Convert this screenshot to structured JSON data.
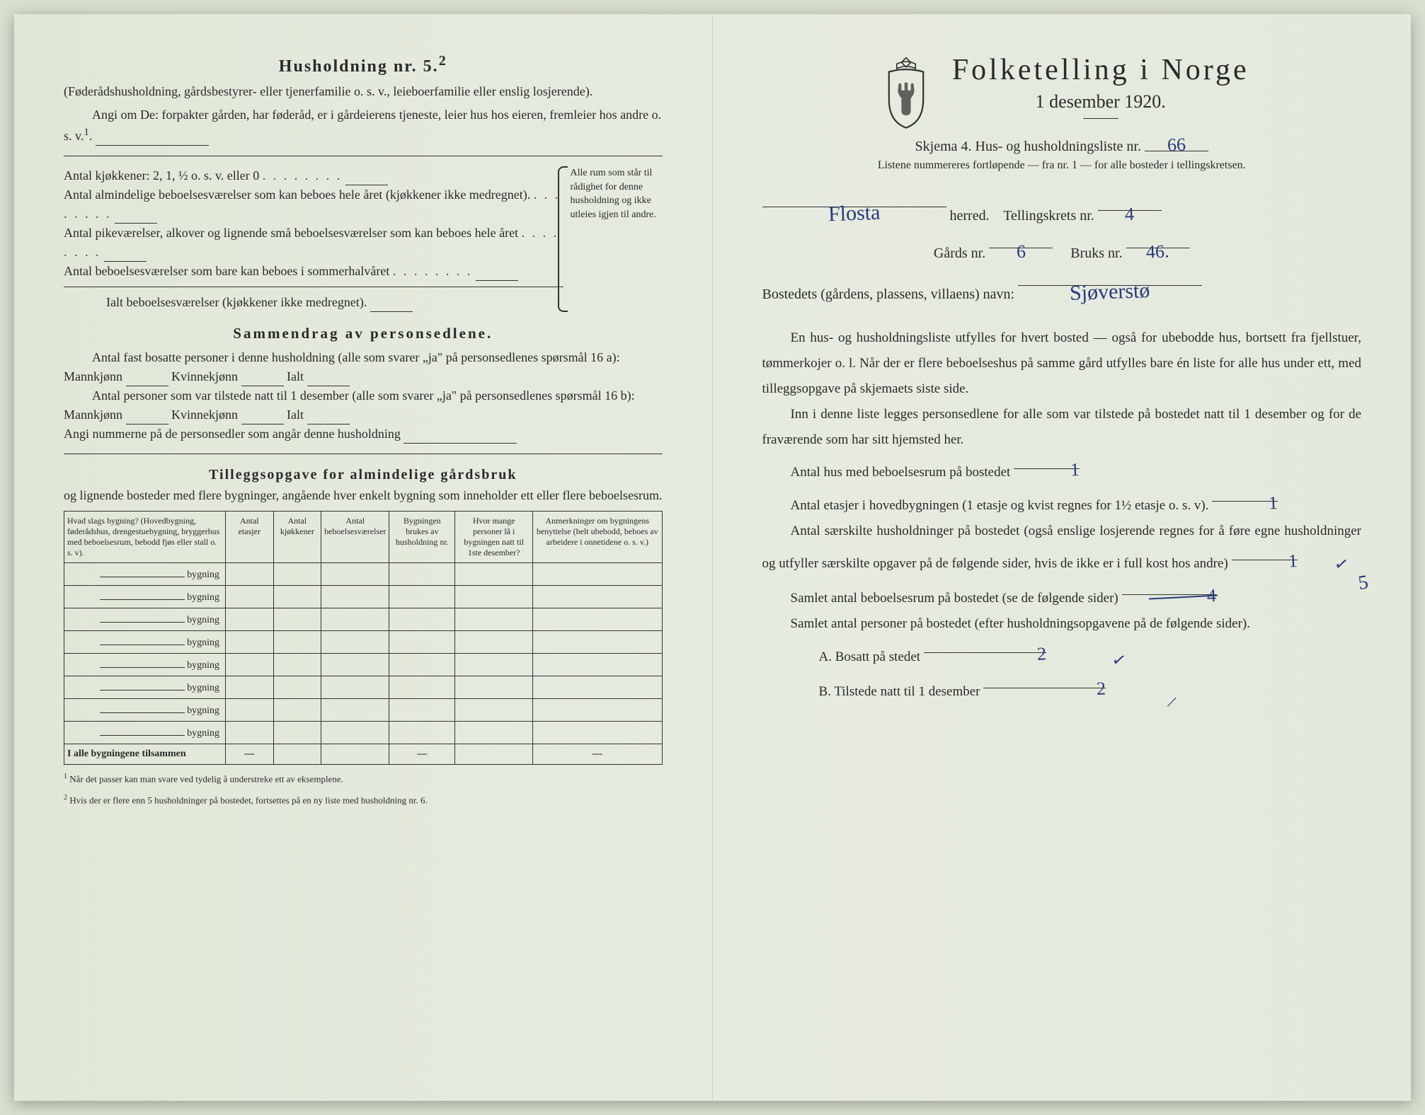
{
  "left": {
    "household_title": "Husholdning nr. 5.",
    "household_sup": "2",
    "household_paren": "(Føderådshusholdning, gårdsbestyrer- eller tjenerfamilie o. s. v., leieboerfamilie eller enslig losjerende).",
    "household_angi": "Angi om De: forpakter gården, har føderåd, er i gårdeierens tjeneste, leier hus hos eieren, fremleier hos andre o. s. v.",
    "kitchen_line": "Antal kjøkkener: 2, 1, ½ o. s. v. eller 0",
    "room_lines": [
      "Antal almindelige beboelsesværelser som kan beboes hele året (kjøkkener ikke medregnet).",
      "Antal pikeværelser, alkover og lignende små beboelsesværelser som kan beboes hele året",
      "Antal beboelsesværelser som bare kan beboes i sommerhalvåret"
    ],
    "ialt_line": "Ialt beboelsesværelser (kjøkkener ikke medregnet).",
    "brace_text": "Alle rum som står til rådighet for denne husholdning og ikke utleies igjen til andre.",
    "sammendrag_title": "Sammendrag av personsedlene.",
    "sammen_line1": "Antal fast bosatte personer i denne husholdning (alle som svarer „ja\" på personsedlenes spørsmål 16 a): Mannkjønn",
    "sammen_kv": "Kvinnekjønn",
    "sammen_ialt": "Ialt",
    "sammen_line2": "Antal personer som var tilstede natt til 1 desember (alle som svarer „ja\" på personsedlenes spørsmål 16 b): Mannkjønn",
    "angi_line": "Angi nummerne på de personsedler som angår denne husholdning",
    "tillegg_title": "Tilleggsopgave for almindelige gårdsbruk",
    "tillegg_sub": "og lignende bosteder med flere bygninger, angående hver enkelt bygning som inneholder ett eller flere beboelsesrum.",
    "table": {
      "headers": [
        "Hvad slags bygning?\n(Hovedbygning, føderådshus, drengestuebygning, bryggerhus med beboelsesrum, bebodd fjøs eller stall o. s. v).",
        "Antal etasjer",
        "Antal kjøkkener",
        "Antal beboelsesværelser",
        "Bygningen brukes av husholdning nr.",
        "Hvor mange personer lå i bygningen natt til 1ste desember?",
        "Anmerkninger om bygningens benyttelse (helt ubebodd, beboes av arbeidere i onnetidene o. s. v.)"
      ],
      "row_label": "bygning",
      "row_count": 8,
      "sum_label": "I alle bygningene tilsammen"
    },
    "footnote1": "Når det passer kan man svare ved tydelig å understreke ett av eksemplene.",
    "footnote2": "Hvis der er flere enn 5 husholdninger på bostedet, fortsettes på en ny liste med husholdning nr. 6."
  },
  "right": {
    "title": "Folketelling i Norge",
    "date": "1 desember 1920.",
    "skjema_prefix": "Skjema 4.  Hus- og husholdningsliste nr.",
    "skjema_nr": "66",
    "list_note": "Listene nummereres fortløpende — fra nr. 1 — for alle bosteder i tellingskretsen.",
    "herred_value": "Flosta",
    "herred_label": "herred.",
    "tellingskrets_label": "Tellingskrets nr.",
    "tellingskrets_value": "4",
    "gards_label": "Gårds nr.",
    "gards_value": "6",
    "bruks_label": "Bruks nr.",
    "bruks_value": "46.",
    "bosted_label": "Bostedets (gårdens, plassens, villaens) navn:",
    "bosted_value": "Sjøverstø",
    "para1": "En hus- og husholdningsliste utfylles for hvert bosted — også for ubebodde hus, bortsett fra fjellstuer, tømmerkojer o. l.  Når der er flere beboelseshus på samme gård utfylles bare én liste for alle hus under ett, med tilleggsopgave på skjemaets siste side.",
    "para2": "Inn i denne liste legges personsedlene for alle som var tilstede på bostedet natt til 1 desember og for de fraværende som har sitt hjemsted her.",
    "q1_label": "Antal hus med beboelsesrum på bostedet",
    "q1_value": "1",
    "q2_label_a": "Antal etasjer i hovedbygningen (1 etasje og kvist regnes for 1½ etasje o. s. v).",
    "q2_value": "1",
    "q3_label": "Antal særskilte husholdninger på bostedet (også enslige losjerende regnes for å føre egne husholdninger og utfyller særskilte opgaver på de følgende sider, hvis de ikke er i full kost hos andre)",
    "q3_value": "1",
    "q4_label": "Samlet antal beboelsesrum på bostedet (se de følgende sider)",
    "q4_original": "4",
    "q4_corrected": "5",
    "q5_label": "Samlet antal personer på bostedet (efter husholdningsopgavene på de følgende sider).",
    "qA_label": "A.  Bosatt på stedet",
    "qA_value": "2",
    "qB_label": "B.  Tilstede natt til 1 desember",
    "qB_value": "2"
  },
  "colors": {
    "ink": "#2a2a2a",
    "handwriting": "#2a3a7a",
    "paper": "#e6ebe0"
  }
}
